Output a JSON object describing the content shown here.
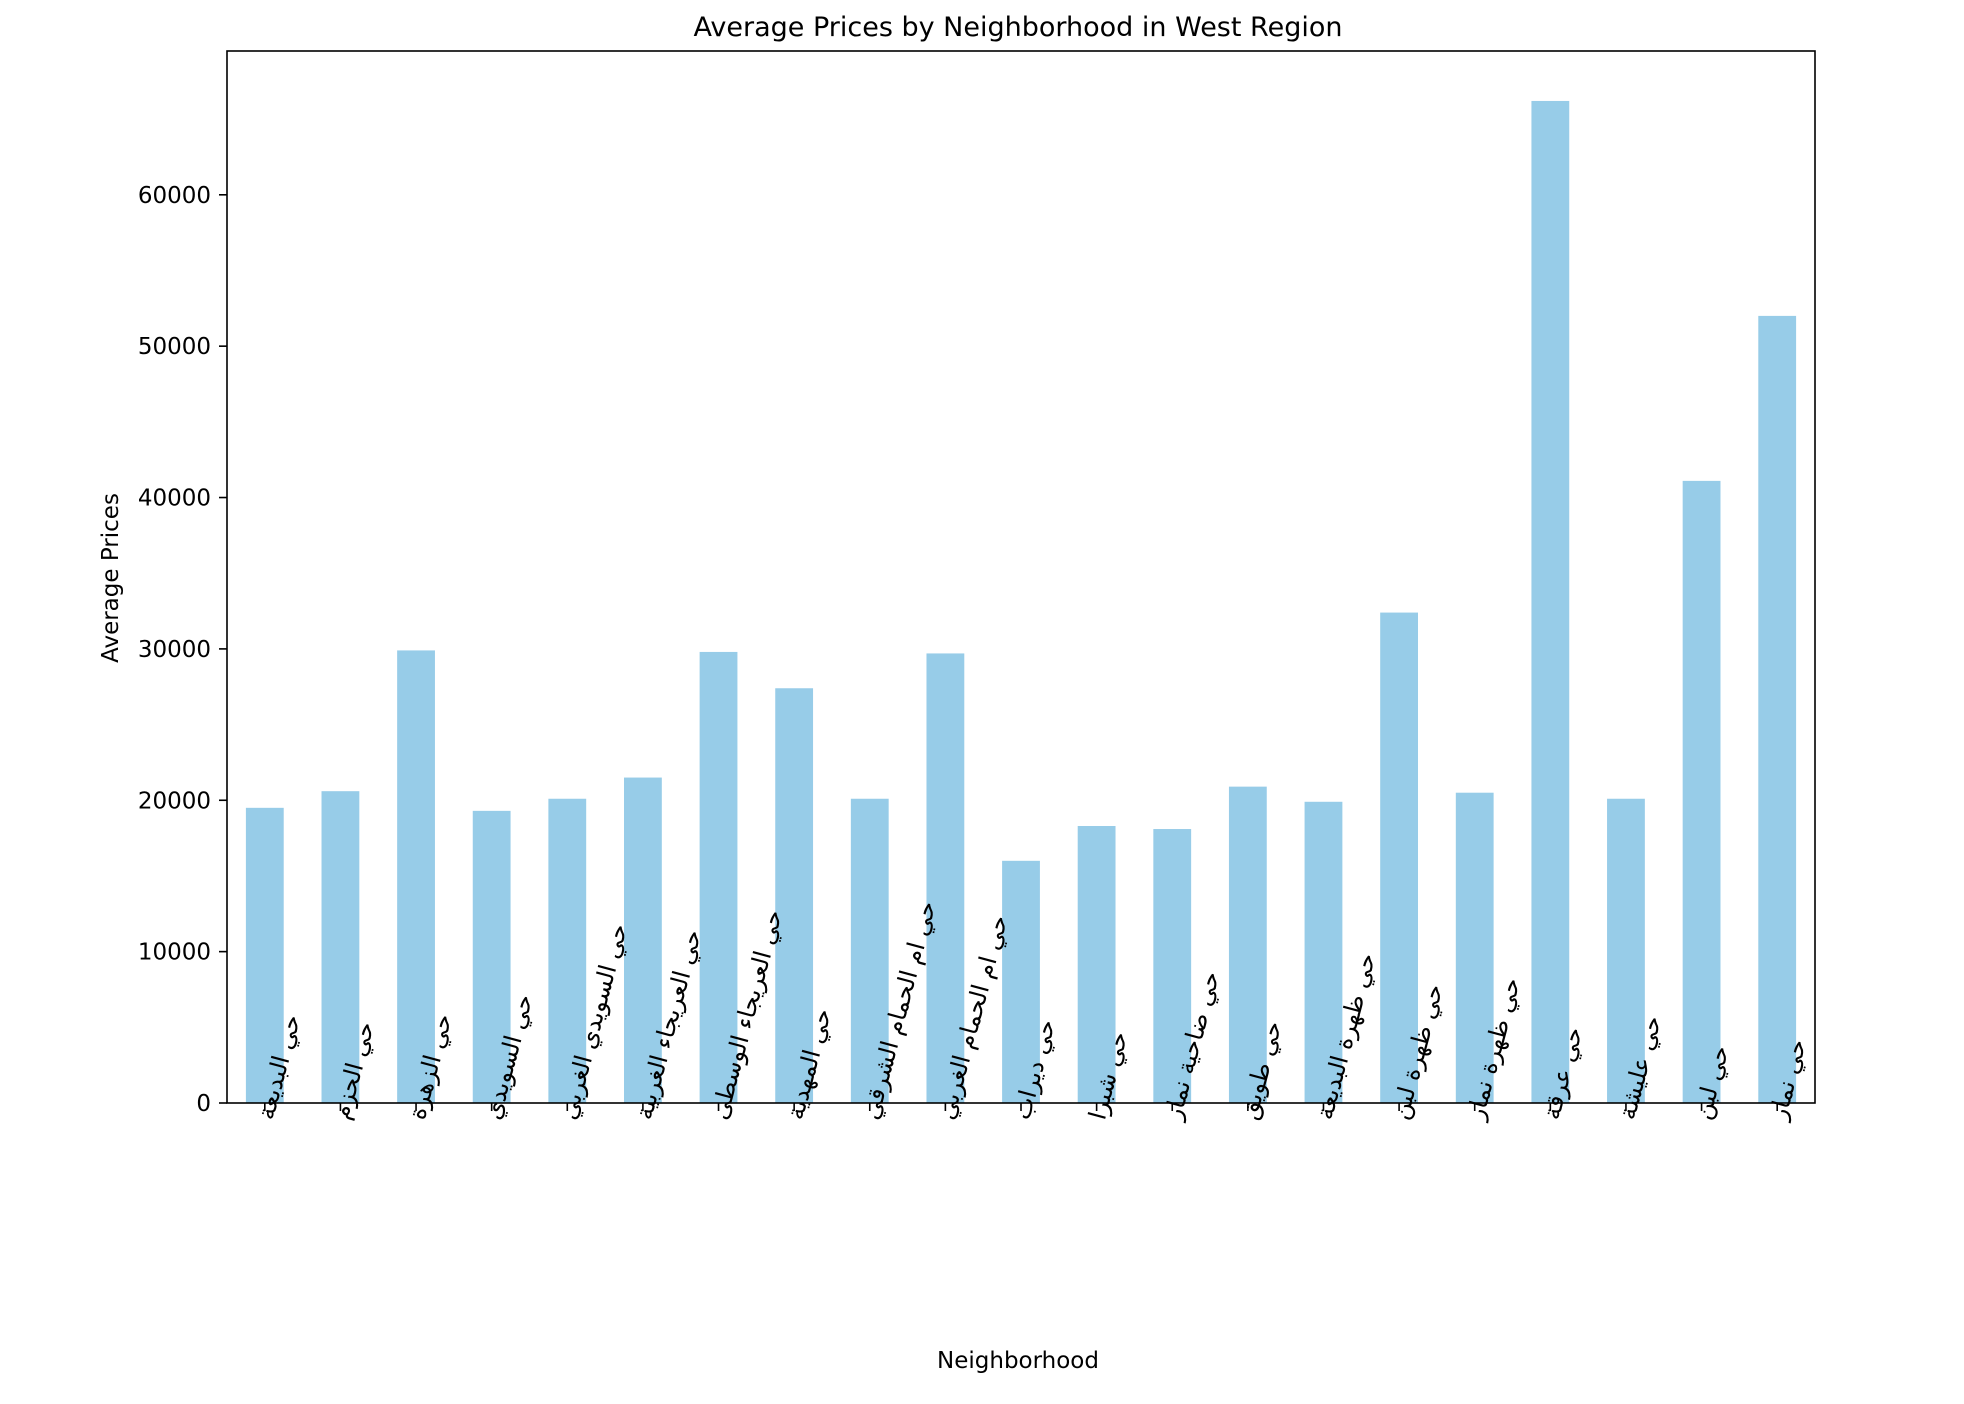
{
  "chart_data": {
    "type": "bar",
    "title": "Average Prices by Neighborhood in West Region",
    "xlabel": "Neighborhood",
    "ylabel": "Average Prices",
    "ylim": [
      0,
      69500
    ],
    "yticks": [
      0,
      10000,
      20000,
      30000,
      40000,
      50000,
      60000
    ],
    "ytick_labels": [
      "0",
      "10000",
      "20000",
      "30000",
      "40000",
      "50000",
      "60000"
    ],
    "grid": false,
    "legend": "none",
    "bar_color": "#97cce8",
    "categories": [
      "حي البديعة",
      "حي الحزم",
      "حي الزهرة",
      "حي السويدي",
      "حي السويدي الغربي",
      "حي العريجاء الغربية",
      "حي العريجاء الوسطى",
      "حي المهدية",
      "حي ام الحمام الشرقي",
      "حي ام الحمام الغربي",
      "حي ديراب",
      "حي شبرا",
      "حي ضاحية نمار",
      "حي طويق",
      "حي ظهرة البديعة",
      "حي ظهرة لبن",
      "حي ظهرة نمار",
      "حي عرقة",
      "حي عليشة",
      "حي لبن",
      "حي نمار"
    ],
    "values": [
      19500,
      20600,
      29900,
      19300,
      20100,
      21500,
      29800,
      27400,
      20100,
      29700,
      16000,
      18300,
      18100,
      20900,
      19900,
      32400,
      20500,
      66200,
      20100,
      41100,
      52000
    ]
  }
}
